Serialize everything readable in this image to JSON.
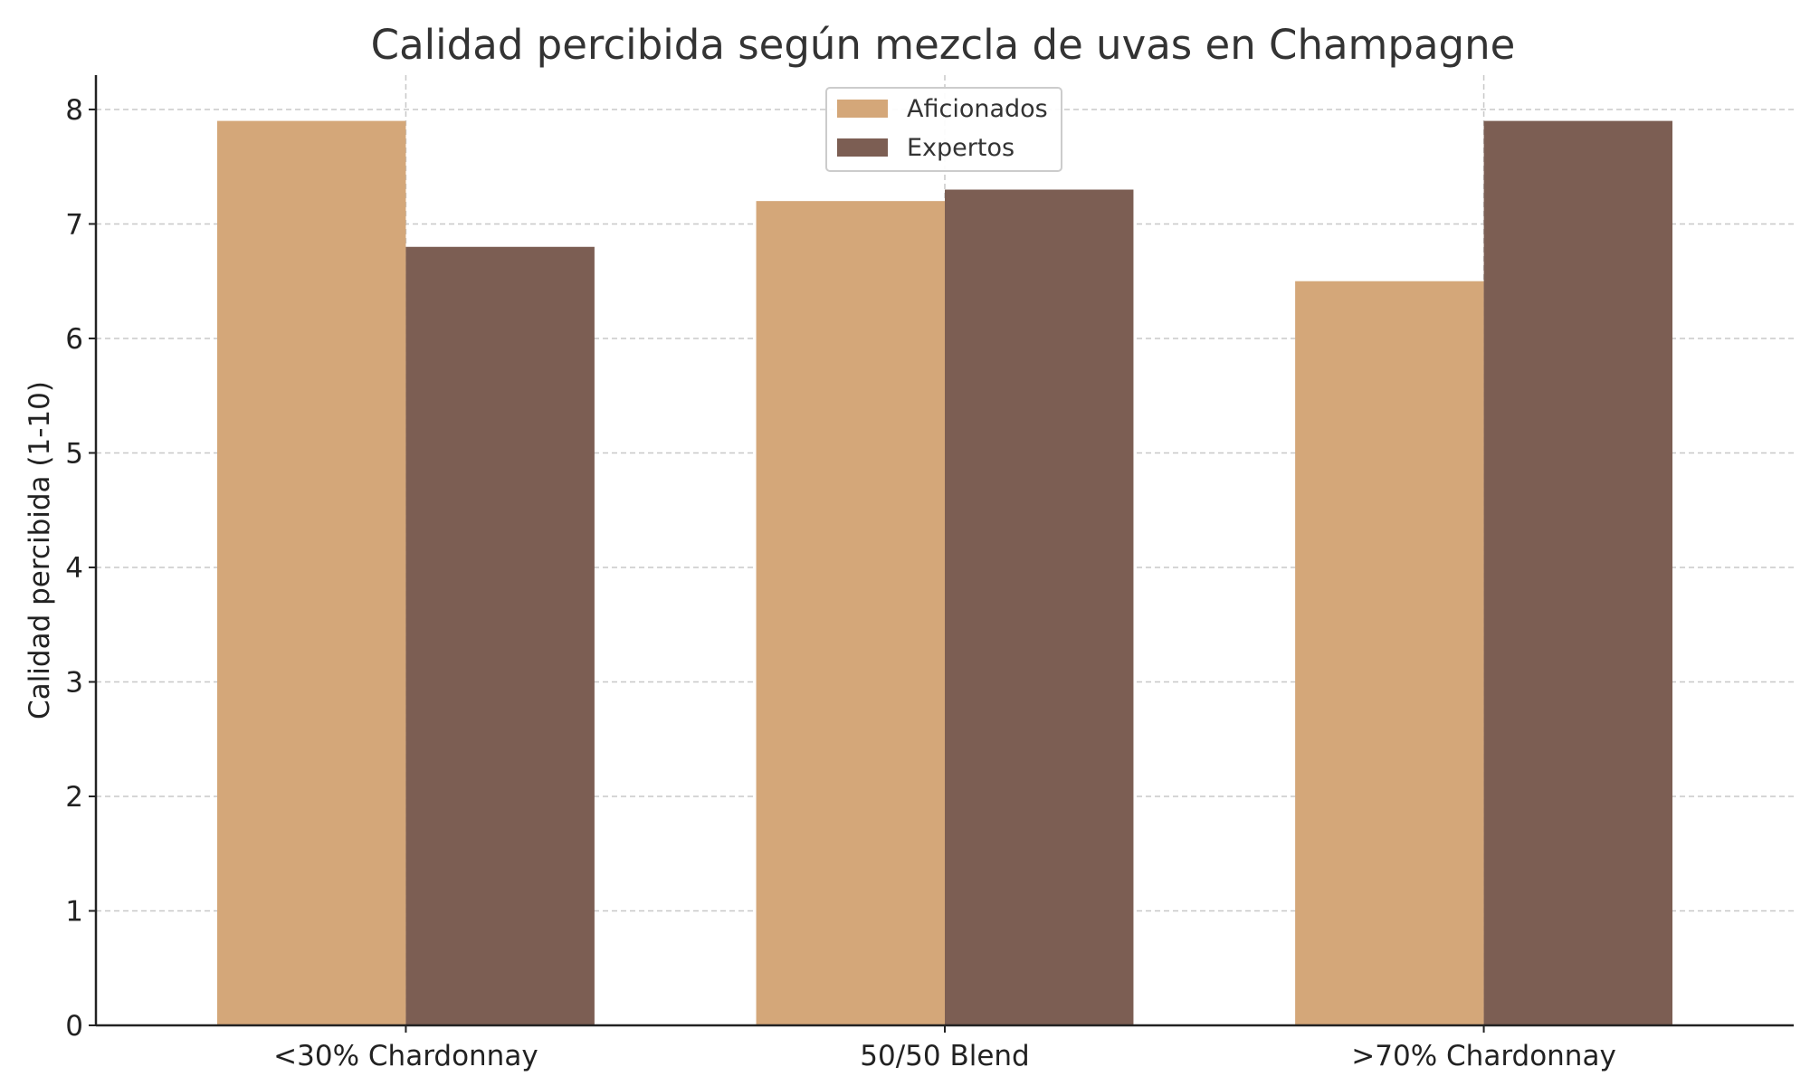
{
  "chart_data": {
    "type": "bar",
    "title": "Calidad percibida según mezcla de uvas en Champagne",
    "xlabel": "",
    "ylabel": "Calidad percibida (1-10)",
    "categories": [
      "<30% Chardonnay",
      "50/50 Blend",
      ">70% Chardonnay"
    ],
    "series": [
      {
        "name": "Aficionados",
        "color": "#d4a779",
        "values": [
          7.9,
          7.2,
          6.5
        ]
      },
      {
        "name": "Expertos",
        "color": "#7c5e53",
        "values": [
          6.8,
          7.3,
          7.9
        ]
      }
    ],
    "ylim": [
      0,
      8.3
    ],
    "yticks": [
      0,
      1,
      2,
      3,
      4,
      5,
      6,
      7,
      8
    ],
    "grid": true,
    "legend_position": "top-center"
  }
}
